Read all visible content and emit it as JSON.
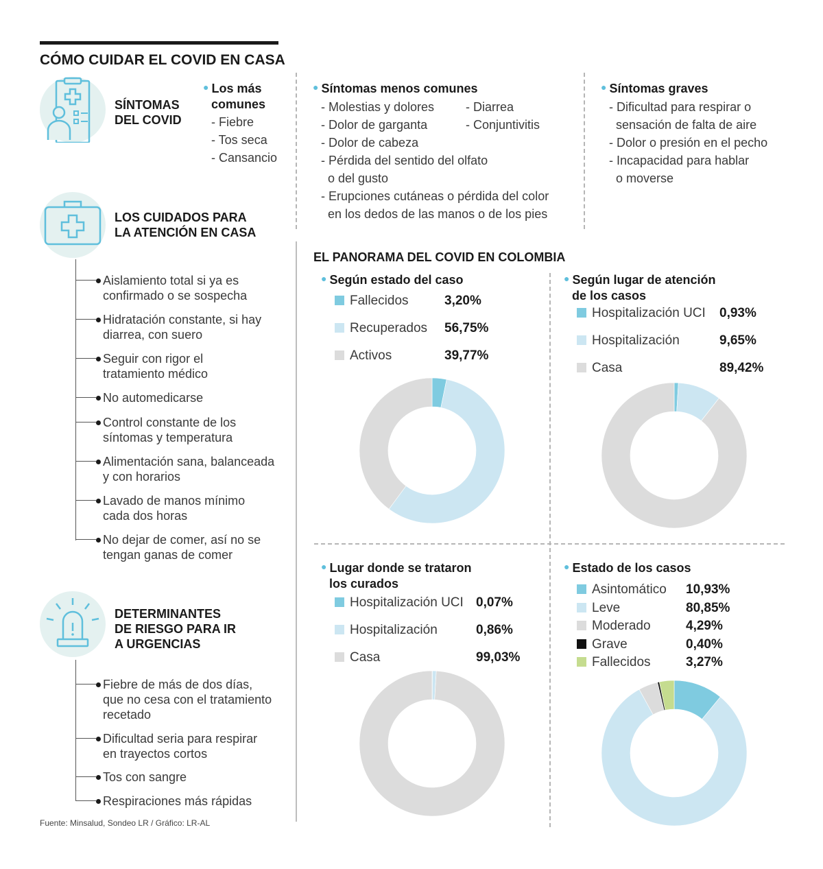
{
  "title": "CÓMO CUIDAR EL COVID EN CASA",
  "symptoms": {
    "heading": [
      "SÍNTOMAS",
      "DEL COVID"
    ],
    "common": {
      "head": [
        "Los más",
        "comunes"
      ],
      "items": [
        "- Fiebre",
        "- Tos seca",
        "- Cansancio"
      ]
    },
    "less_common": {
      "head": "Síntomas menos comunes",
      "col1": [
        "- Molestias y dolores",
        "- Dolor de garganta",
        "- Dolor de cabeza"
      ],
      "col2": [
        "- Diarrea",
        "- Conjuntivitis"
      ],
      "long": [
        [
          "- Pérdida del sentido del olfato",
          "o del gusto"
        ],
        [
          "- Erupciones cutáneas o pérdida del color",
          "en los dedos de las manos o de los pies"
        ]
      ]
    },
    "serious": {
      "head": "Síntomas graves",
      "items": [
        [
          "- Dificultad para respirar o",
          "sensación de falta de aire"
        ],
        [
          "- Dolor o presión en el pecho"
        ],
        [
          "- Incapacidad para hablar",
          "o moverse"
        ]
      ]
    }
  },
  "care": {
    "heading": [
      "LOS CUIDADOS PARA",
      "LA ATENCIÓN EN CASA"
    ],
    "items": [
      [
        "Aislamiento total si ya es",
        "confirmado o se sospecha"
      ],
      [
        "Hidratación constante, si hay",
        "diarrea, con suero"
      ],
      [
        "Seguir con rigor el",
        "tratamiento médico"
      ],
      [
        "No automedicarse"
      ],
      [
        "Control constante de los",
        "síntomas y temperatura"
      ],
      [
        "Alimentación sana, balanceada",
        "y con horarios"
      ],
      [
        "Lavado de manos mínimo",
        "cada dos horas"
      ],
      [
        "No dejar de comer, así no se",
        "tengan ganas de comer"
      ]
    ]
  },
  "risk": {
    "heading": [
      "DETERMINANTES",
      "DE RIESGO PARA IR",
      "A URGENCIAS"
    ],
    "items": [
      [
        "Fiebre de más de dos días,",
        "que no cesa con el tratamiento",
        "recetado"
      ],
      [
        "Dificultad seria para respirar",
        "en trayectos cortos"
      ],
      [
        "Tos con sangre"
      ],
      [
        "Respiraciones más rápidas"
      ]
    ]
  },
  "panorama_title": "EL PANORAMA DEL COVID EN COLOMBIA",
  "footer": "Fuente: Minsalud, Sondeo LR / Gráfico: LR-AL",
  "colors": {
    "blue": "#7fcbe0",
    "light_blue": "#cce6f2",
    "gray": "#dcdcdc",
    "black": "#111111",
    "green": "#c5dc8f"
  },
  "chart_data": [
    {
      "type": "pie",
      "title": [
        "Según estado del caso"
      ],
      "series": [
        {
          "name": "Fallecidos",
          "value": 3.2,
          "label": "3,20%",
          "color": "#7fcbe0"
        },
        {
          "name": "Recuperados",
          "value": 56.75,
          "label": "56,75%",
          "color": "#cce6f2"
        },
        {
          "name": "Activos",
          "value": 39.77,
          "label": "39,77%",
          "color": "#dcdcdc"
        }
      ]
    },
    {
      "type": "pie",
      "title": [
        "Según lugar de atención",
        "de los casos"
      ],
      "series": [
        {
          "name": "Hospitalización UCI",
          "value": 0.93,
          "label": "0,93%",
          "color": "#7fcbe0"
        },
        {
          "name": "Hospitalización",
          "value": 9.65,
          "label": "9,65%",
          "color": "#cce6f2"
        },
        {
          "name": "Casa",
          "value": 89.42,
          "label": "89,42%",
          "color": "#dcdcdc"
        }
      ]
    },
    {
      "type": "pie",
      "title": [
        "Lugar donde se trataron",
        "los curados"
      ],
      "series": [
        {
          "name": "Hospitalización UCI",
          "value": 0.07,
          "label": "0,07%",
          "color": "#7fcbe0"
        },
        {
          "name": "Hospitalización",
          "value": 0.86,
          "label": "0,86%",
          "color": "#cce6f2"
        },
        {
          "name": "Casa",
          "value": 99.03,
          "label": "99,03%",
          "color": "#dcdcdc"
        }
      ]
    },
    {
      "type": "pie",
      "title": [
        "Estado de los casos"
      ],
      "series": [
        {
          "name": "Asintomático",
          "value": 10.93,
          "label": "10,93%",
          "color": "#7fcbe0"
        },
        {
          "name": "Leve",
          "value": 80.85,
          "label": "80,85%",
          "color": "#cce6f2"
        },
        {
          "name": "Moderado",
          "value": 4.29,
          "label": "4,29%",
          "color": "#dcdcdc"
        },
        {
          "name": "Grave",
          "value": 0.4,
          "label": "0,40%",
          "color": "#111111"
        },
        {
          "name": "Fallecidos",
          "value": 3.27,
          "label": "3,27%",
          "color": "#c5dc8f"
        }
      ]
    }
  ]
}
